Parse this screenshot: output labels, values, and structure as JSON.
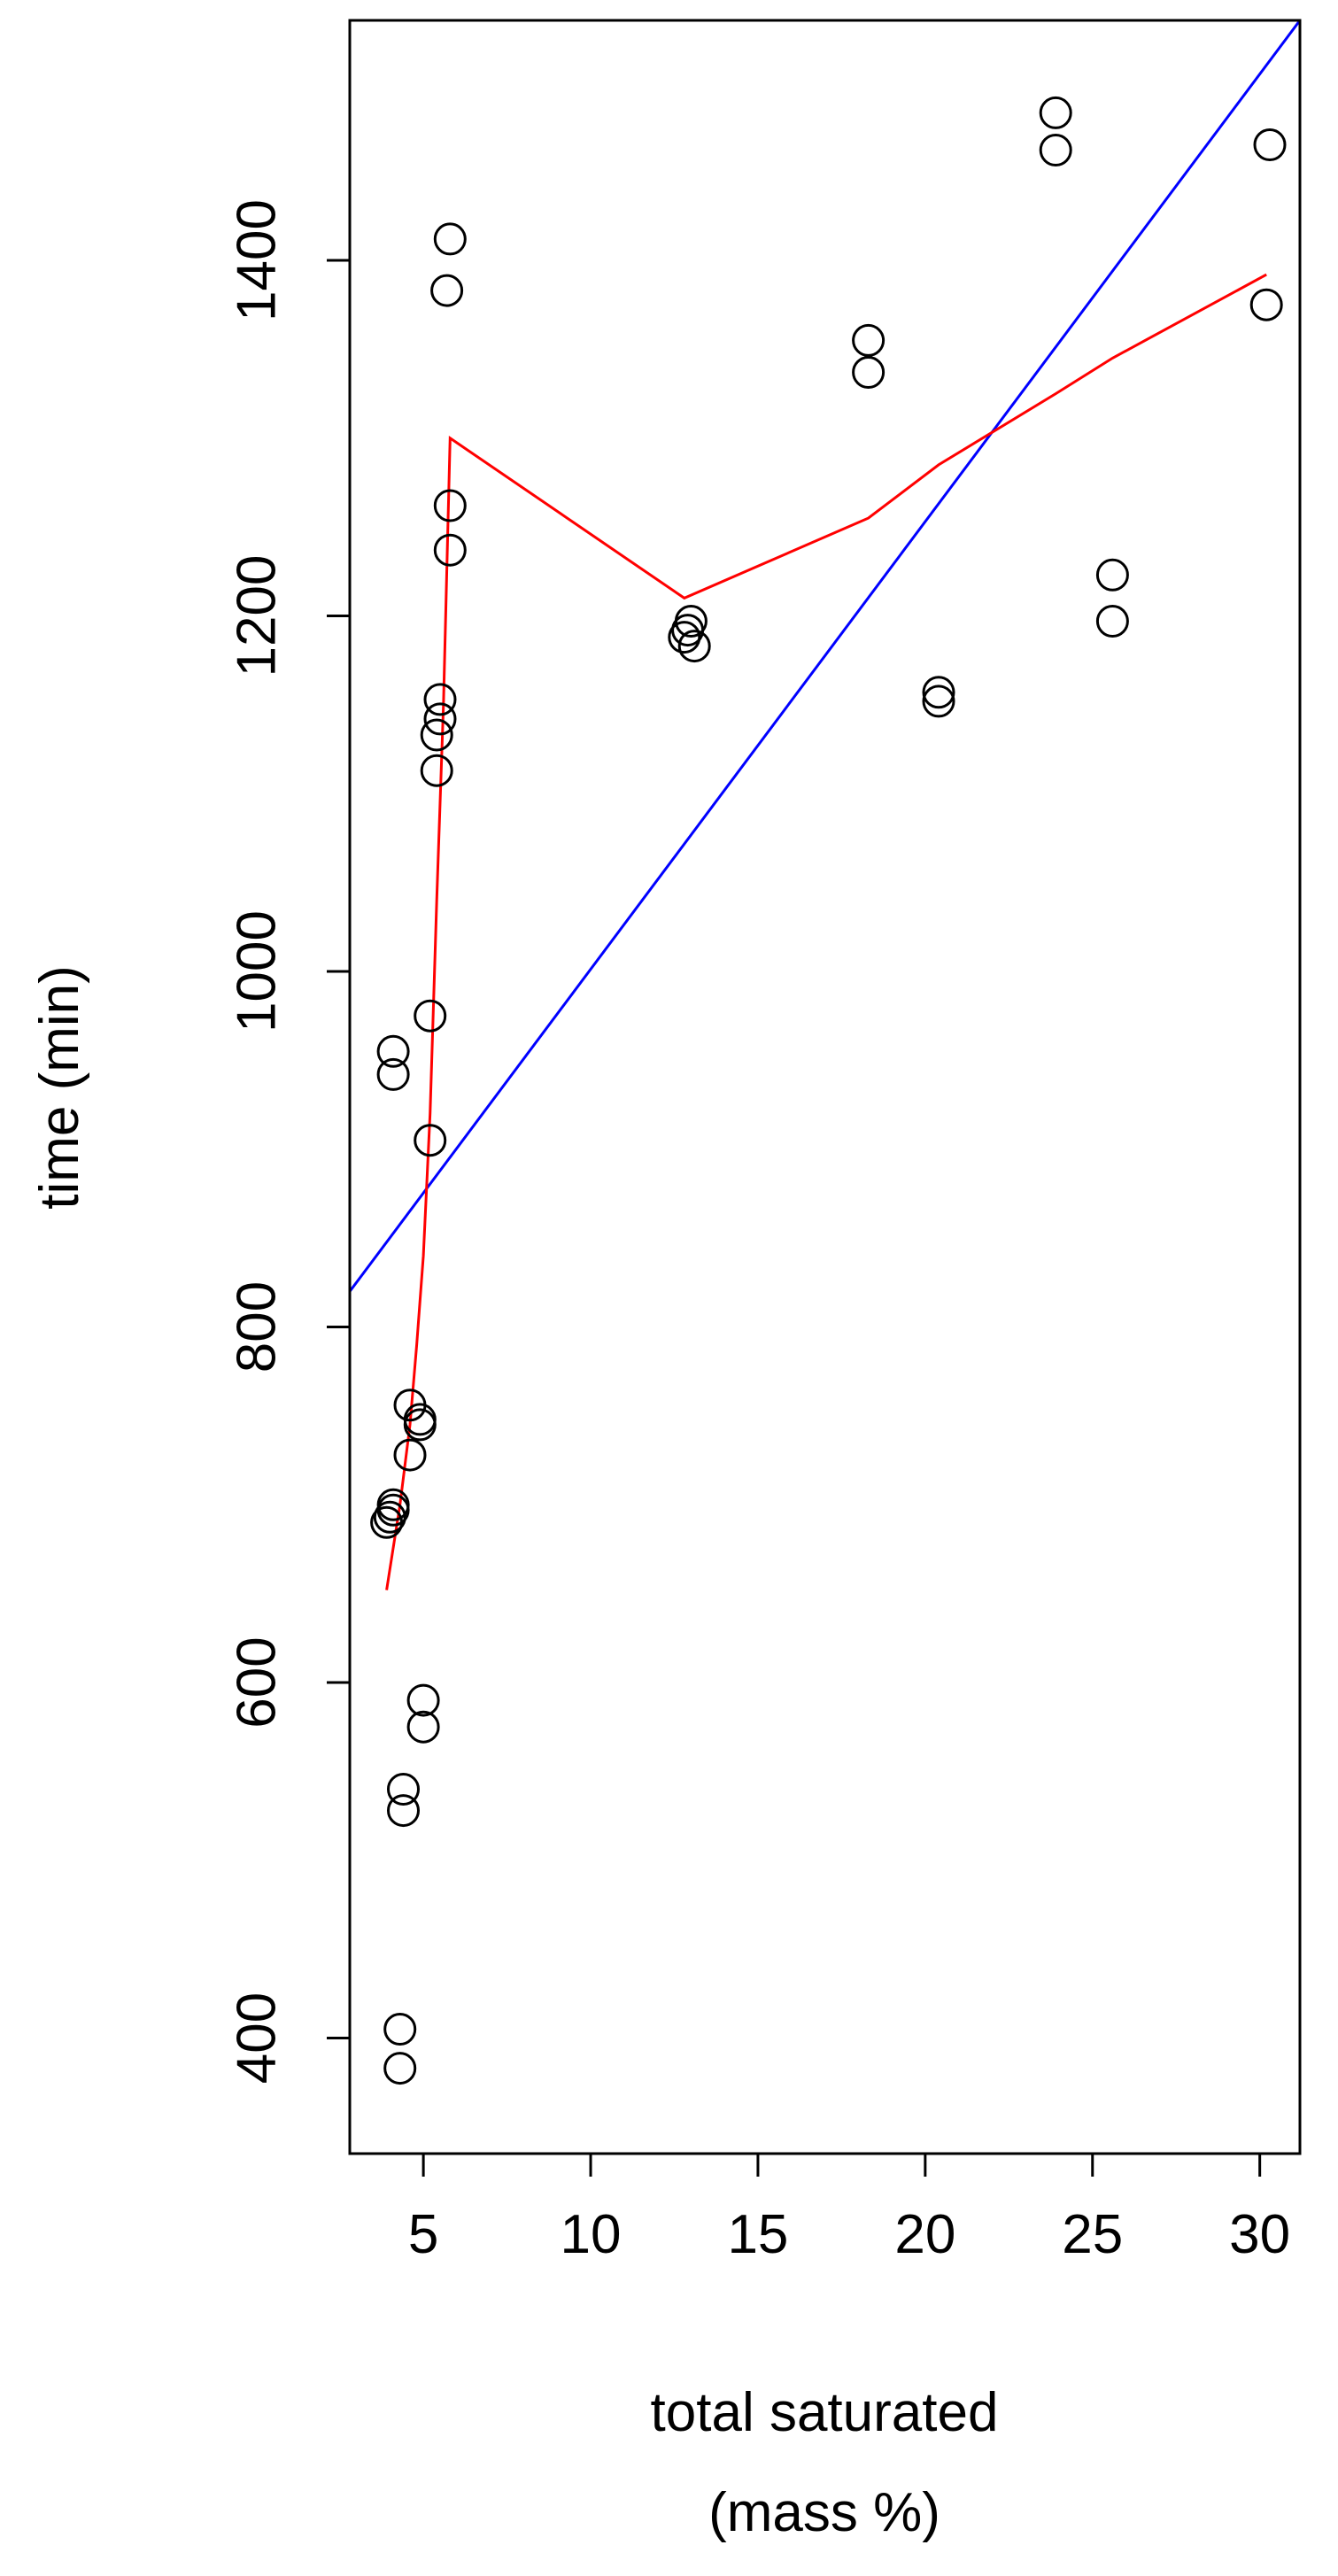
{
  "chart_data": {
    "type": "scatter",
    "title": "",
    "xlabel": [
      "total saturated",
      "(mass %)"
    ],
    "ylabel": "time (min)",
    "xlim": [
      2.8,
      31.2
    ],
    "ylim": [
      335,
      1535
    ],
    "xticks": [
      5,
      10,
      15,
      20,
      25,
      30
    ],
    "yticks": [
      400,
      600,
      800,
      1000,
      1200,
      1400
    ],
    "grid": false,
    "legend": "none",
    "colors": {
      "points": "#000000",
      "fit_line": "#0000ff",
      "smooth_line": "#ff0000",
      "axes": "#000000"
    },
    "points": [
      {
        "x": 4.3,
        "y": 405
      },
      {
        "x": 4.3,
        "y": 383
      },
      {
        "x": 4.4,
        "y": 540
      },
      {
        "x": 4.4,
        "y": 528
      },
      {
        "x": 5.0,
        "y": 590
      },
      {
        "x": 5.0,
        "y": 575
      },
      {
        "x": 3.9,
        "y": 690
      },
      {
        "x": 4.0,
        "y": 693
      },
      {
        "x": 4.1,
        "y": 697
      },
      {
        "x": 4.1,
        "y": 700
      },
      {
        "x": 4.6,
        "y": 728
      },
      {
        "x": 4.9,
        "y": 745
      },
      {
        "x": 4.9,
        "y": 748
      },
      {
        "x": 4.6,
        "y": 756
      },
      {
        "x": 5.2,
        "y": 905
      },
      {
        "x": 4.1,
        "y": 942
      },
      {
        "x": 4.1,
        "y": 955
      },
      {
        "x": 5.2,
        "y": 975
      },
      {
        "x": 5.4,
        "y": 1113
      },
      {
        "x": 5.4,
        "y": 1133
      },
      {
        "x": 5.5,
        "y": 1142
      },
      {
        "x": 5.5,
        "y": 1153
      },
      {
        "x": 5.8,
        "y": 1237
      },
      {
        "x": 5.8,
        "y": 1262
      },
      {
        "x": 5.7,
        "y": 1383
      },
      {
        "x": 5.8,
        "y": 1412
      },
      {
        "x": 12.8,
        "y": 1188
      },
      {
        "x": 12.9,
        "y": 1192
      },
      {
        "x": 13.0,
        "y": 1197
      },
      {
        "x": 13.1,
        "y": 1183
      },
      {
        "x": 18.3,
        "y": 1337
      },
      {
        "x": 18.3,
        "y": 1355
      },
      {
        "x": 20.4,
        "y": 1152
      },
      {
        "x": 20.4,
        "y": 1157
      },
      {
        "x": 23.9,
        "y": 1462
      },
      {
        "x": 23.9,
        "y": 1483
      },
      {
        "x": 25.6,
        "y": 1197
      },
      {
        "x": 25.6,
        "y": 1223
      },
      {
        "x": 30.2,
        "y": 1375
      },
      {
        "x": 30.3,
        "y": 1465
      }
    ],
    "series": [
      {
        "kind": "linear-fit",
        "x": [
          2.8,
          31.2
        ],
        "y": [
          820,
          1535
        ]
      },
      {
        "kind": "smoother",
        "x": [
          3.9,
          4.3,
          4.6,
          4.8,
          5.0,
          5.2,
          5.4,
          5.6,
          5.8,
          12.8,
          18.3,
          20.4,
          23.9,
          25.6,
          30.2
        ],
        "y": [
          652,
          700,
          745,
          790,
          840,
          920,
          1040,
          1150,
          1300,
          1210,
          1255,
          1285,
          1325,
          1345,
          1392
        ]
      }
    ]
  }
}
